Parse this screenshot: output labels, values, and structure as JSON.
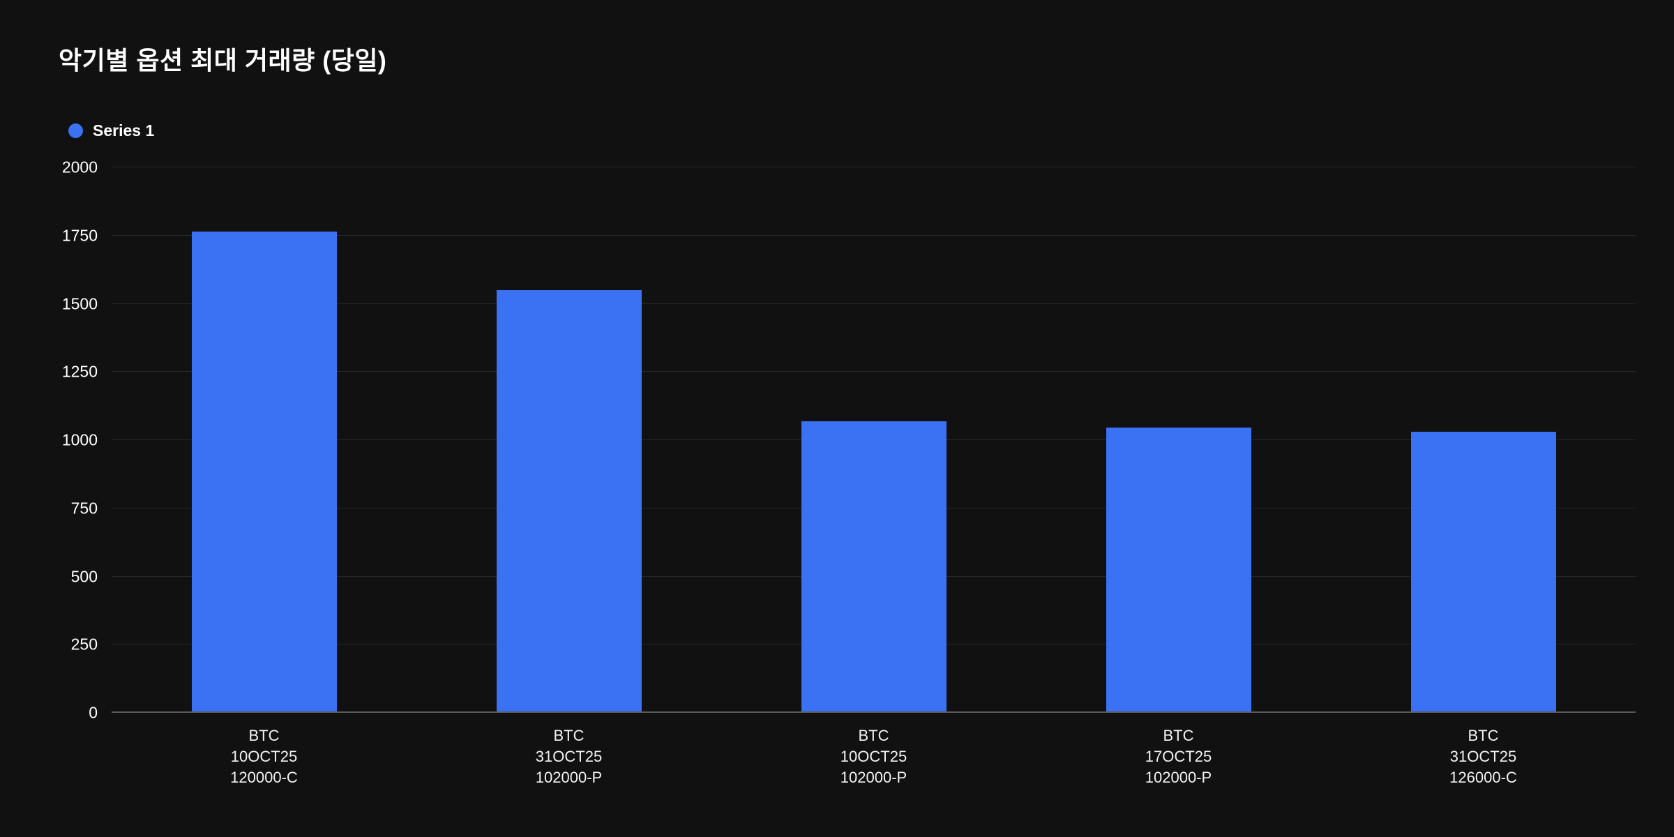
{
  "colors": {
    "background": "#111111",
    "accent": "#3b71f3",
    "grid": "#272727",
    "axis_line": "#5a5a5a",
    "text": "#ffffff"
  },
  "chart_data": {
    "type": "bar",
    "title": "악기별 옵션 최대 거래량 (당일)",
    "legend": [
      "Series 1"
    ],
    "legend_position": "top-left",
    "grid": true,
    "xlabel": "",
    "ylabel": "",
    "ylim": [
      0,
      2000
    ],
    "yticks": [
      0,
      250,
      500,
      750,
      1000,
      1250,
      1500,
      1750,
      2000
    ],
    "categories": [
      [
        "BTC",
        "10OCT25",
        "120000-C"
      ],
      [
        "BTC",
        "31OCT25",
        "102000-P"
      ],
      [
        "BTC",
        "10OCT25",
        "102000-P"
      ],
      [
        "BTC",
        "17OCT25",
        "102000-P"
      ],
      [
        "BTC",
        "31OCT25",
        "126000-C"
      ]
    ],
    "values": [
      1765,
      1550,
      1070,
      1045,
      1030
    ]
  }
}
